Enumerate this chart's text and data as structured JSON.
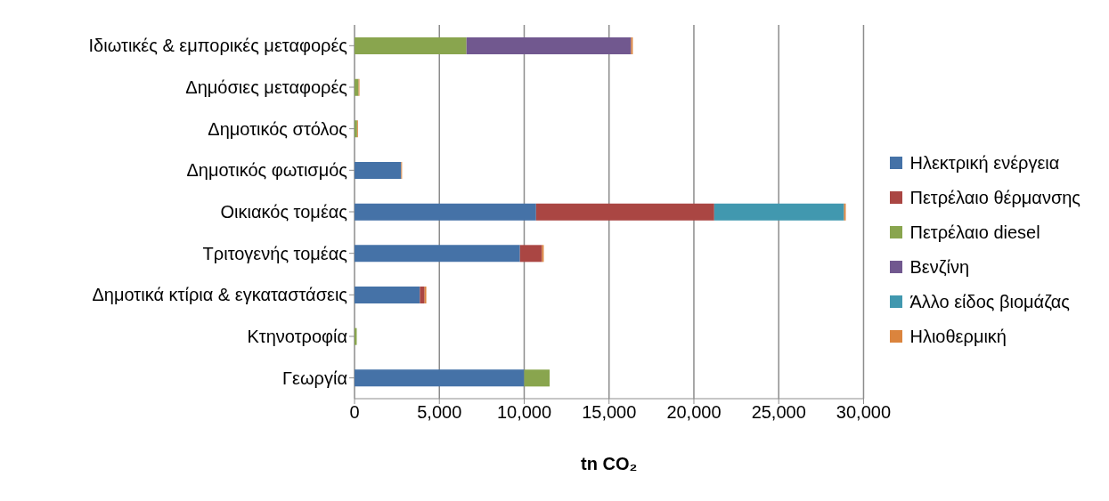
{
  "chart_data": {
    "type": "bar",
    "orientation": "horizontal",
    "stacked": true,
    "xlabel": "tn CO₂",
    "categories": [
      "Ιδιωτικές & εμπορικές μεταφορές",
      "Δημόσιες μεταφορές",
      "Δημοτικός στόλος",
      "Δημοτικός φωτισμός",
      "Οικιακός τομέας",
      "Τριτογενής  τομέας",
      "Δημοτικά κτίρια & εγκαταστάσεις",
      "Κτηνοτροφία",
      "Γεωργία"
    ],
    "series": [
      {
        "name": "Ηλεκτρική ενέργεια",
        "color": "#4572a7",
        "values": [
          null,
          null,
          null,
          2750,
          10700,
          9750,
          3850,
          null,
          10000
        ]
      },
      {
        "name": "Πετρέλαιο θέρμανσης",
        "color": "#aa4643",
        "values": [
          null,
          null,
          null,
          null,
          10500,
          1300,
          280,
          null,
          null
        ]
      },
      {
        "name": "Πετρέλαιο diesel",
        "color": "#89a54e",
        "values": [
          6600,
          240,
          150,
          null,
          null,
          null,
          null,
          130,
          1500
        ]
      },
      {
        "name": "Βενζίνη",
        "color": "#71588f",
        "values": [
          9700,
          null,
          null,
          null,
          null,
          null,
          null,
          null,
          null
        ]
      },
      {
        "name": "Άλλο είδος βιομάζας",
        "color": "#4198af",
        "values": [
          null,
          null,
          null,
          null,
          7650,
          null,
          null,
          null,
          null
        ]
      },
      {
        "name": "Ηλιοθερμική",
        "color": "#db843d",
        "values": [
          100,
          50,
          50,
          50,
          100,
          100,
          100,
          null,
          null
        ]
      }
    ],
    "xlim": [
      0,
      30000
    ],
    "xticks": [
      0,
      {
        "value": 5000,
        "label": "5,000"
      },
      {
        "value": 10000,
        "label": "10,000"
      },
      {
        "value": 15000,
        "label": "15,000"
      },
      {
        "value": 20000,
        "label": "20,000"
      },
      {
        "value": 25000,
        "label": "25,000"
      },
      {
        "value": 30000,
        "label": "30,000"
      }
    ],
    "grid": "x",
    "legend": "right"
  }
}
